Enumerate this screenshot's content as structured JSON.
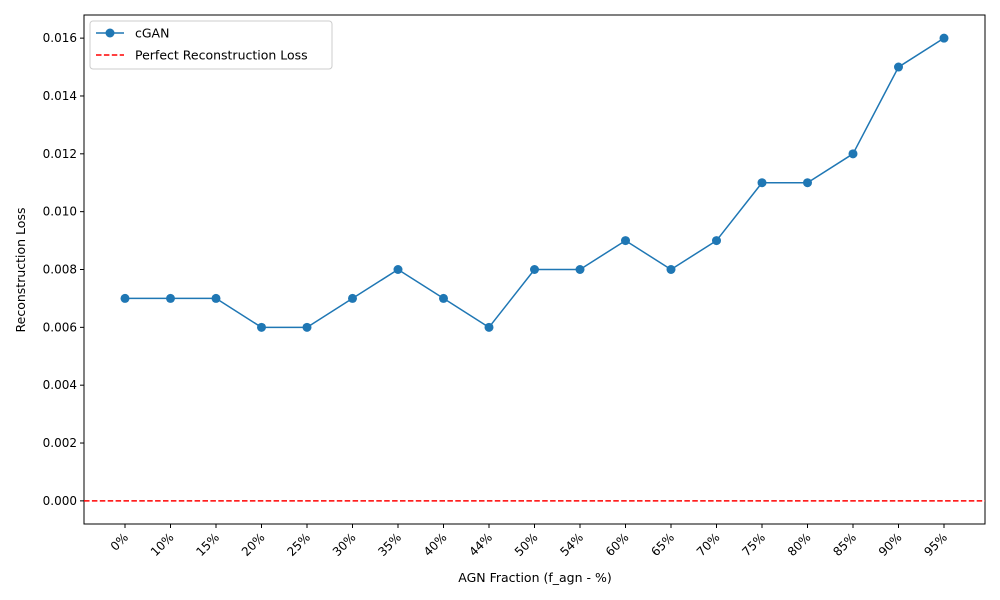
{
  "chart_data": {
    "type": "line",
    "categories": [
      "0%",
      "10%",
      "15%",
      "20%",
      "25%",
      "30%",
      "35%",
      "40%",
      "44%",
      "50%",
      "54%",
      "60%",
      "65%",
      "70%",
      "75%",
      "80%",
      "85%",
      "90%",
      "95%"
    ],
    "series": [
      {
        "name": "cGAN",
        "color": "#1f77b4",
        "marker": "circle",
        "values": [
          0.007,
          0.007,
          0.007,
          0.006,
          0.006,
          0.007,
          0.008,
          0.007,
          0.006,
          0.008,
          0.008,
          0.009,
          0.008,
          0.009,
          0.011,
          0.011,
          0.012,
          0.015,
          0.016
        ]
      }
    ],
    "reference_lines": [
      {
        "name": "Perfect Reconstruction Loss",
        "y": 0.0,
        "color": "#ff0000",
        "style": "dashed"
      }
    ],
    "xlabel": "AGN Fraction (f_agn - %)",
    "ylabel": "Reconstruction Loss",
    "ylim": [
      -0.0008,
      0.0168
    ],
    "yticks": [
      "0.000",
      "0.002",
      "0.004",
      "0.006",
      "0.008",
      "0.010",
      "0.012",
      "0.014",
      "0.016"
    ],
    "ytick_values": [
      0,
      0.002,
      0.004,
      0.006,
      0.008,
      0.01,
      0.012,
      0.014,
      0.016
    ],
    "xtick_rotation": 45,
    "grid": false,
    "legend_position": "top-left"
  }
}
